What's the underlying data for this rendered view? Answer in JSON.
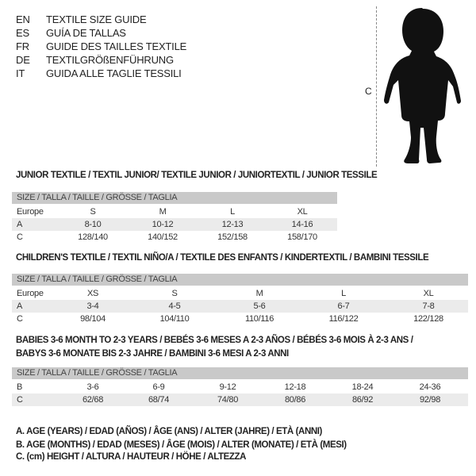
{
  "languages": [
    {
      "code": "EN",
      "text": "TEXTILE SIZE GUIDE"
    },
    {
      "code": "ES",
      "text": "GUÍA DE TALLAS"
    },
    {
      "code": "FR",
      "text": "GUIDE DES TAILLES TEXTILE"
    },
    {
      "code": "DE",
      "text": "TEXTILGRÖßENFÜHRUNG"
    },
    {
      "code": "IT",
      "text": "GUIDA ALLE TAGLIE TESSILI"
    }
  ],
  "figure": {
    "measure_label": "C",
    "icon": "toddler-silhouette"
  },
  "junior": {
    "title": "JUNIOR TEXTILE / TEXTIL JUNIOR/ TEXTILE JUNIOR / JUNIORTEXTIL / JUNIOR TESSILE",
    "header": "SIZE / TALLA / TAILLE / GRÖSSE / TAGLIA",
    "rows": [
      {
        "label": "Europe",
        "values": [
          "S",
          "M",
          "L",
          "XL"
        ]
      },
      {
        "label": "A",
        "values": [
          "8-10",
          "10-12",
          "12-13",
          "14-16"
        ]
      },
      {
        "label": "C",
        "values": [
          "128/140",
          "140/152",
          "152/158",
          "158/170"
        ]
      }
    ]
  },
  "children": {
    "title": "CHILDREN'S TEXTILE / TEXTIL NIÑO/A / TEXTILE DES ENFANTS / KINDERTEXTIL / BAMBINI TESSILE",
    "header": "SIZE / TALLA / TAILLE / GRÖSSE / TAGLIA",
    "rows": [
      {
        "label": "Europe",
        "values": [
          "XS",
          "S",
          "M",
          "L",
          "XL"
        ]
      },
      {
        "label": "A",
        "values": [
          "3-4",
          "4-5",
          "5-6",
          "6-7",
          "7-8"
        ]
      },
      {
        "label": "C",
        "values": [
          "98/104",
          "104/110",
          "110/116",
          "116/122",
          "122/128"
        ]
      }
    ]
  },
  "babies": {
    "title_line1": "BABIES 3-6 MONTH TO 2-3 YEARS / BEBÉS 3-6 MESES A 2-3 AÑOS / BÉBÉS 3-6 MOIS À 2-3 ANS /",
    "title_line2": "BABYS 3-6 MONATE BIS 2-3 JAHRE / BAMBINI 3-6 MESI A 2-3 ANNI",
    "header": "SIZE / TALLA / TAILLE / GRÖSSE / TAGLIA",
    "rows": [
      {
        "label": "B",
        "values": [
          "3-6",
          "6-9",
          "9-12",
          "12-18",
          "18-24",
          "24-36"
        ]
      },
      {
        "label": "C",
        "values": [
          "62/68",
          "68/74",
          "74/80",
          "80/86",
          "86/92",
          "92/98"
        ]
      }
    ]
  },
  "legend": [
    "A. AGE (YEARS) / EDAD (AÑOS) / ÂGE (ANS) / ALTER (JAHRE) / ETÀ (ANNI)",
    "B. AGE (MONTHS) / EDAD (MESES) / ÂGE (MOIS) / ALTER (MONATE) / ETÀ (MESI)",
    "C. (cm) HEIGHT / ALTURA / HAUTEUR / HÖHE / ALTEZZA"
  ]
}
